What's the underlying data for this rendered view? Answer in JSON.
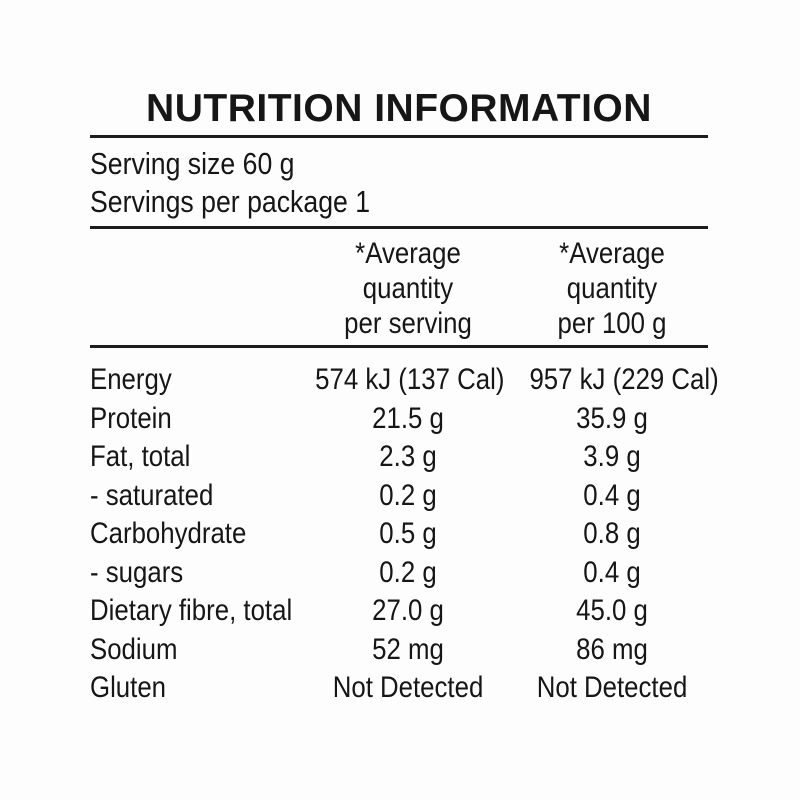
{
  "panel": {
    "title": "NUTRITION INFORMATION",
    "intro": {
      "serving_size": "Serving size 60 g",
      "servings_per_package": "Servings per package 1"
    },
    "columns": {
      "per_serving": {
        "line1": "*Average",
        "line2": "quantity",
        "line3": "per serving"
      },
      "per_100g": {
        "line1": "*Average",
        "line2": "quantity",
        "line3": "per 100 g"
      }
    },
    "rows": [
      {
        "nutrient": "Energy",
        "per_serving": "574 kJ (137 Cal)",
        "per_100g": "957 kJ (229 Cal)"
      },
      {
        "nutrient": "Protein",
        "per_serving": "21.5 g",
        "per_100g": "35.9 g"
      },
      {
        "nutrient": "Fat, total",
        "per_serving": "2.3 g",
        "per_100g": "3.9 g"
      },
      {
        "nutrient": "- saturated",
        "per_serving": "0.2 g",
        "per_100g": "0.4 g"
      },
      {
        "nutrient": "Carbohydrate",
        "per_serving": "0.5 g",
        "per_100g": "0.8 g"
      },
      {
        "nutrient": "- sugars",
        "per_serving": "0.2 g",
        "per_100g": "0.4 g"
      },
      {
        "nutrient": "Dietary fibre, total",
        "per_serving": "27.0 g",
        "per_100g": "45.0 g"
      },
      {
        "nutrient": "Sodium",
        "per_serving": "52 mg",
        "per_100g": "86 mg"
      },
      {
        "nutrient": "Gluten",
        "per_serving": "Not Detected",
        "per_100g": "Not Detected"
      }
    ],
    "colors": {
      "text": "#161616",
      "rule": "#1c1c1c",
      "background": "#fdfdfd"
    }
  }
}
